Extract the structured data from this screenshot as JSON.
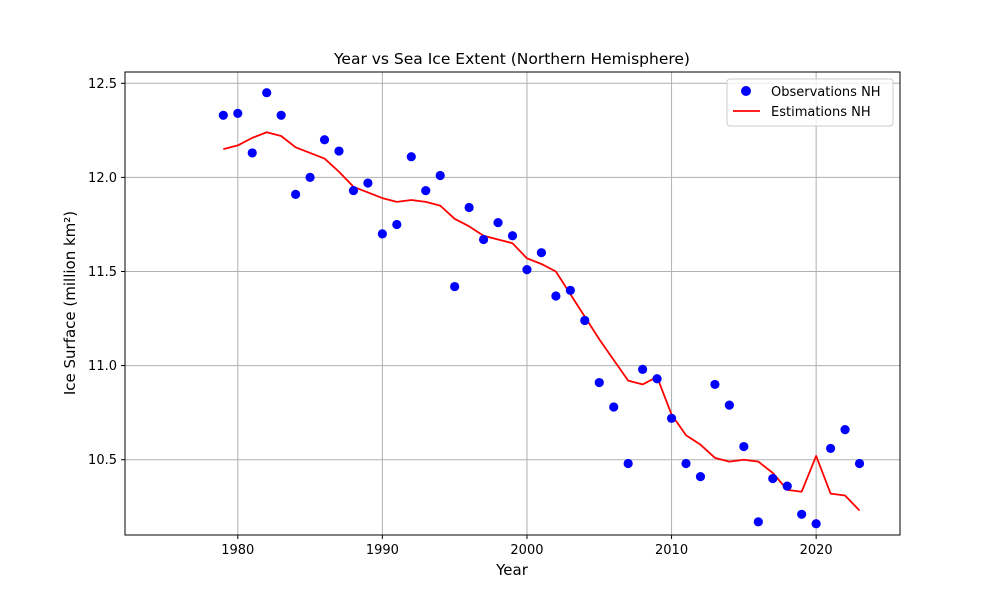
{
  "chart_data": {
    "type": "scatter+line",
    "title": "Year vs Sea Ice Extent (Northern Hemisphere)",
    "xlabel": "Year",
    "ylabel": "Ice Surface (million km²)",
    "xlim": [
      1972.2,
      2025.8
    ],
    "ylim": [
      10.1,
      12.56
    ],
    "xticks": [
      1980,
      1990,
      2000,
      2010,
      2020
    ],
    "yticks": [
      10.5,
      11.0,
      11.5,
      12.0,
      12.5
    ],
    "xtick_labels": [
      "1980",
      "1990",
      "2000",
      "2010",
      "2020"
    ],
    "ytick_labels": [
      "10.5",
      "11.0",
      "11.5",
      "12.0",
      "12.5"
    ],
    "grid": true,
    "legend_position": "top-right",
    "colors": {
      "observations": "#0000ff",
      "estimations": "#ff0000"
    },
    "series": [
      {
        "name": "Observations NH",
        "kind": "scatter",
        "x": [
          1979,
          1980,
          1981,
          1982,
          1983,
          1984,
          1985,
          1986,
          1987,
          1988,
          1989,
          1990,
          1991,
          1992,
          1993,
          1994,
          1995,
          1996,
          1997,
          1998,
          1999,
          2000,
          2001,
          2002,
          2003,
          2004,
          2005,
          2006,
          2007,
          2008,
          2009,
          2010,
          2011,
          2012,
          2013,
          2014,
          2015,
          2016,
          2017,
          2018,
          2019,
          2020,
          2021,
          2022,
          2023
        ],
        "y": [
          12.33,
          12.34,
          12.13,
          12.45,
          12.33,
          11.91,
          12.0,
          12.2,
          12.14,
          11.93,
          11.97,
          11.7,
          11.75,
          12.11,
          11.93,
          12.01,
          11.42,
          11.84,
          11.67,
          11.76,
          11.69,
          11.51,
          11.6,
          11.37,
          11.4,
          11.24,
          10.91,
          10.78,
          10.48,
          10.98,
          10.93,
          10.72,
          10.48,
          10.41,
          10.9,
          10.79,
          10.57,
          10.17,
          10.4,
          10.36,
          10.21,
          10.16,
          10.56,
          10.66,
          10.48
        ]
      },
      {
        "name": "Estimations NH",
        "kind": "line",
        "x": [
          1979,
          1980,
          1981,
          1982,
          1983,
          1984,
          1985,
          1986,
          1987,
          1988,
          1989,
          1990,
          1991,
          1992,
          1993,
          1994,
          1995,
          1996,
          1997,
          1998,
          1999,
          2000,
          2001,
          2002,
          2003,
          2004,
          2005,
          2006,
          2007,
          2008,
          2009,
          2010,
          2011,
          2012,
          2013,
          2014,
          2015,
          2016,
          2017,
          2018,
          2019,
          2020,
          2021,
          2022,
          2023
        ],
        "y": [
          12.15,
          12.17,
          12.21,
          12.24,
          12.22,
          12.16,
          12.13,
          12.1,
          12.03,
          11.95,
          11.92,
          11.89,
          11.87,
          11.88,
          11.87,
          11.85,
          11.78,
          11.74,
          11.69,
          11.67,
          11.65,
          11.57,
          11.54,
          11.5,
          11.38,
          11.26,
          11.14,
          11.03,
          10.92,
          10.9,
          10.94,
          10.74,
          10.63,
          10.58,
          10.51,
          10.49,
          10.5,
          10.49,
          10.43,
          10.34,
          10.33,
          10.52,
          10.32,
          10.31,
          10.23
        ]
      }
    ]
  }
}
